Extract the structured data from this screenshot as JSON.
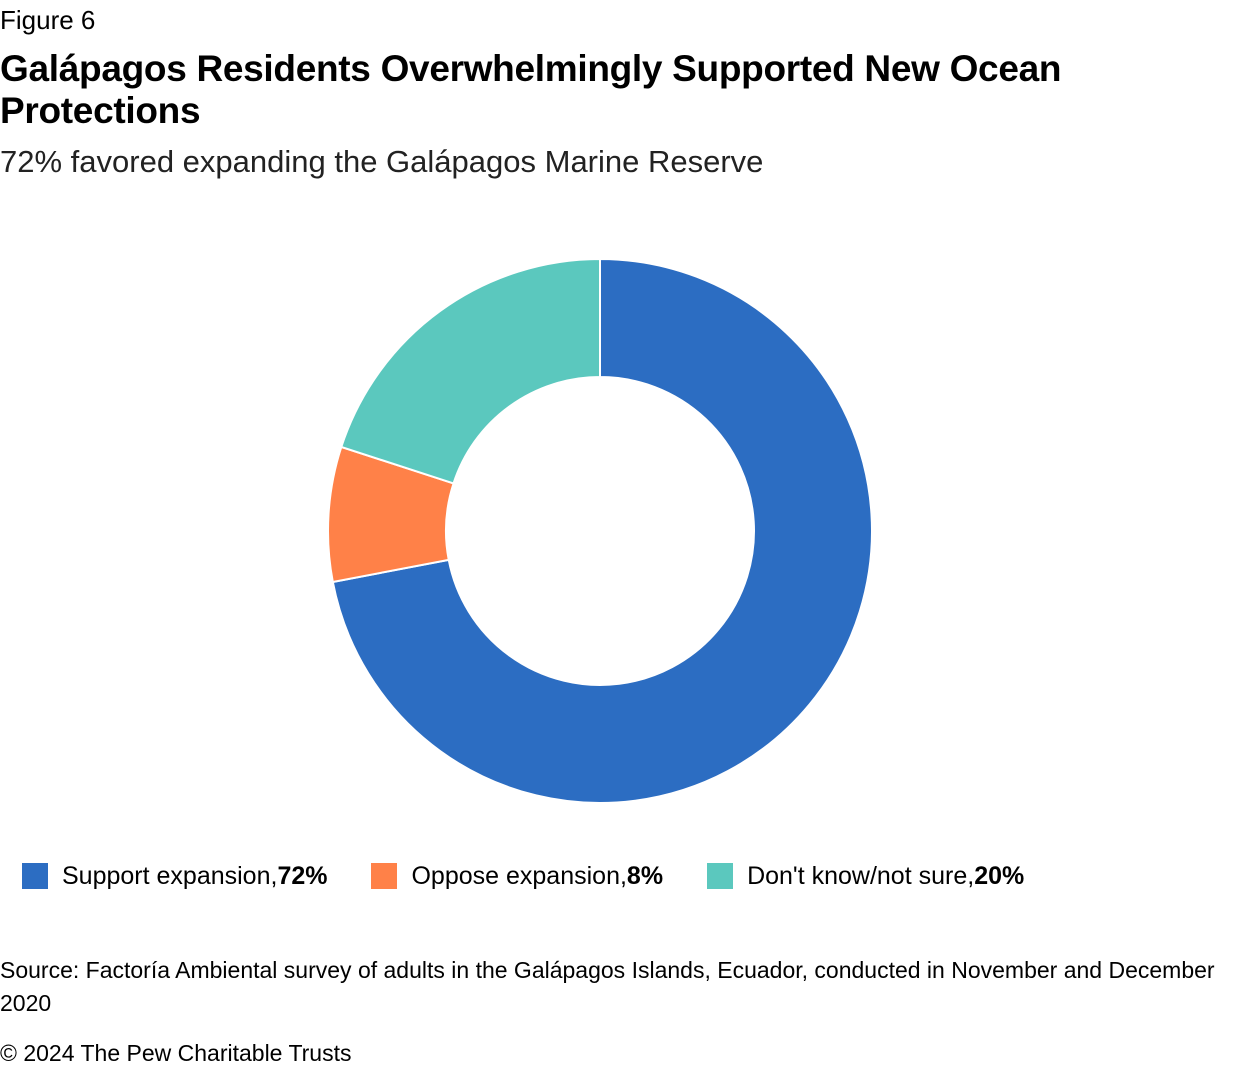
{
  "figure_label": "Figure 6",
  "title": "Galápagos Residents Overwhelmingly Supported New Ocean Protections",
  "subtitle": "72% favored expanding the Galápagos Marine Reserve",
  "chart_data": {
    "type": "pie",
    "variant": "donut",
    "categories": [
      "Support expansion",
      "Oppose expansion",
      "Don't know/not sure"
    ],
    "values": [
      72,
      8,
      20
    ],
    "value_labels": [
      "72%",
      "8%",
      "20%"
    ],
    "colors": [
      "#2C6DC2",
      "#FF8148",
      "#5BC8BE"
    ],
    "legend_position": "bottom",
    "title": "Galápagos Residents Overwhelmingly Supported New Ocean Protections",
    "subtitle": "72% favored expanding the Galápagos Marine Reserve"
  },
  "legend": [
    {
      "label": "Support expansion, ",
      "value": "72%",
      "color": "#2C6DC2"
    },
    {
      "label": "Oppose expansion, ",
      "value": "8%",
      "color": "#FF8148"
    },
    {
      "label": "Don't know/not sure, ",
      "value": "20%",
      "color": "#5BC8BE"
    }
  ],
  "source": "Source: Factoría Ambiental survey of adults in the Galápagos Islands, Ecuador, conducted in November and December 2020",
  "copyright": "© 2024 The Pew Charitable Trusts"
}
